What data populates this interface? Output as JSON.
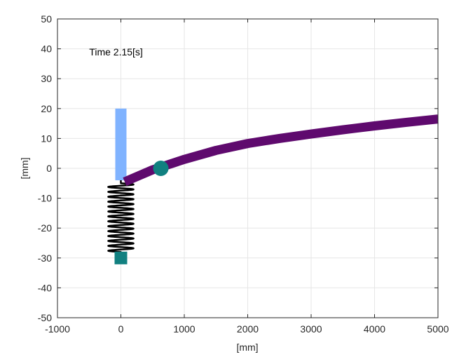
{
  "chart_data": {
    "type": "line",
    "xlabel": "[mm]",
    "ylabel": "[mm]",
    "xlim": [
      -1000,
      5000
    ],
    "ylim": [
      -50,
      50
    ],
    "xticks": [
      -1000,
      0,
      1000,
      2000,
      3000,
      4000,
      5000
    ],
    "yticks": [
      -50,
      -40,
      -30,
      -20,
      -10,
      0,
      10,
      20,
      30,
      40,
      50
    ],
    "grid": true,
    "annotation": {
      "text": "Time 2.15[s]",
      "x": -400,
      "y": 39
    },
    "colors": {
      "beam": "#5f0a6e",
      "post": "#80b3ff",
      "marker": "#118080",
      "spring": "#000000",
      "grid": "#e6e6e6",
      "axis": "#262626"
    },
    "series": [
      {
        "x": [
          60,
          500,
          1000,
          1500,
          2000,
          2500,
          3000,
          3500,
          4000,
          4500,
          5000
        ],
        "y": [
          -4.5,
          -0.5,
          3.0,
          6.0,
          8.3,
          10.0,
          11.5,
          12.9,
          14.2,
          15.4,
          16.5
        ]
      }
    ],
    "post": {
      "x": 0,
      "y_bottom": -4,
      "y_top": 20
    },
    "spring": {
      "x_center": 0,
      "x_halfwidth": 200,
      "y_top": -5,
      "y_bottom": -28,
      "coils": 14
    },
    "circle_marker": {
      "x": 630,
      "y": 0
    },
    "square_marker": {
      "x": 0,
      "y": -30
    }
  }
}
